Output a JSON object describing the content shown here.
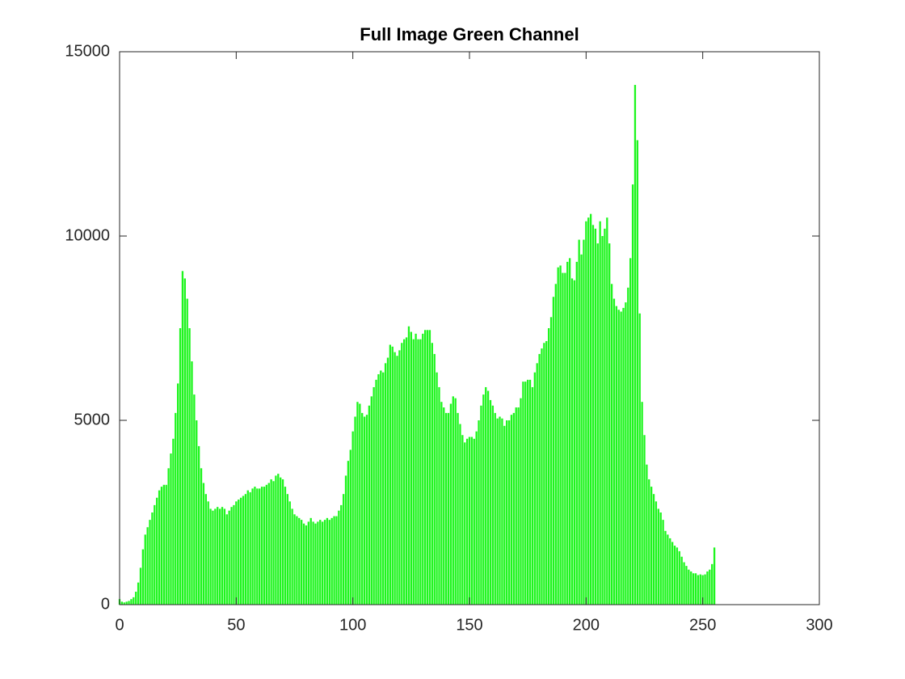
{
  "chart_data": {
    "type": "bar",
    "title": "Full Image Green Channel",
    "x": [
      0,
      1,
      2,
      3,
      4,
      5,
      6,
      7,
      8,
      9,
      10,
      11,
      12,
      13,
      14,
      15,
      16,
      17,
      18,
      19,
      20,
      21,
      22,
      23,
      24,
      25,
      26,
      27,
      28,
      29,
      30,
      31,
      32,
      33,
      34,
      35,
      36,
      37,
      38,
      39,
      40,
      41,
      42,
      43,
      44,
      45,
      46,
      47,
      48,
      49,
      50,
      51,
      52,
      53,
      54,
      55,
      56,
      57,
      58,
      59,
      60,
      61,
      62,
      63,
      64,
      65,
      66,
      67,
      68,
      69,
      70,
      71,
      72,
      73,
      74,
      75,
      76,
      77,
      78,
      79,
      80,
      81,
      82,
      83,
      84,
      85,
      86,
      87,
      88,
      89,
      90,
      91,
      92,
      93,
      94,
      95,
      96,
      97,
      98,
      99,
      100,
      101,
      102,
      103,
      104,
      105,
      106,
      107,
      108,
      109,
      110,
      111,
      112,
      113,
      114,
      115,
      116,
      117,
      118,
      119,
      120,
      121,
      122,
      123,
      124,
      125,
      126,
      127,
      128,
      129,
      130,
      131,
      132,
      133,
      134,
      135,
      136,
      137,
      138,
      139,
      140,
      141,
      142,
      143,
      144,
      145,
      146,
      147,
      148,
      149,
      150,
      151,
      152,
      153,
      154,
      155,
      156,
      157,
      158,
      159,
      160,
      161,
      162,
      163,
      164,
      165,
      166,
      167,
      168,
      169,
      170,
      171,
      172,
      173,
      174,
      175,
      176,
      177,
      178,
      179,
      180,
      181,
      182,
      183,
      184,
      185,
      186,
      187,
      188,
      189,
      190,
      191,
      192,
      193,
      194,
      195,
      196,
      197,
      198,
      199,
      200,
      201,
      202,
      203,
      204,
      205,
      206,
      207,
      208,
      209,
      210,
      211,
      212,
      213,
      214,
      215,
      216,
      217,
      218,
      219,
      220,
      221,
      222,
      223,
      224,
      225,
      226,
      227,
      228,
      229,
      230,
      231,
      232,
      233,
      234,
      235,
      236,
      237,
      238,
      239,
      240,
      241,
      242,
      243,
      244,
      245,
      246,
      247,
      248,
      249,
      250,
      251,
      252,
      253,
      254,
      255
    ],
    "values": [
      150,
      80,
      60,
      80,
      100,
      150,
      200,
      350,
      600,
      1000,
      1500,
      1900,
      2100,
      2300,
      2500,
      2700,
      2900,
      3100,
      3200,
      3250,
      3250,
      3700,
      4100,
      4500,
      5200,
      6000,
      7500,
      9050,
      8850,
      8300,
      7500,
      6600,
      5700,
      5000,
      4300,
      3700,
      3300,
      3000,
      2800,
      2600,
      2550,
      2600,
      2650,
      2600,
      2650,
      2600,
      2450,
      2550,
      2650,
      2700,
      2800,
      2850,
      2900,
      2950,
      3000,
      3100,
      3050,
      3150,
      3200,
      3150,
      3150,
      3200,
      3200,
      3250,
      3300,
      3400,
      3350,
      3500,
      3550,
      3450,
      3400,
      3200,
      3000,
      2800,
      2600,
      2450,
      2400,
      2350,
      2300,
      2200,
      2150,
      2250,
      2350,
      2250,
      2200,
      2250,
      2300,
      2250,
      2300,
      2350,
      2300,
      2350,
      2400,
      2400,
      2550,
      2700,
      3000,
      3500,
      3900,
      4200,
      4700,
      5100,
      5500,
      5450,
      5200,
      5100,
      5150,
      5400,
      5650,
      5900,
      6100,
      6250,
      6350,
      6300,
      6550,
      6700,
      7050,
      7000,
      6850,
      6750,
      6900,
      7100,
      7200,
      7250,
      7550,
      7400,
      7200,
      7350,
      7200,
      7200,
      7350,
      7450,
      7450,
      7450,
      7100,
      6800,
      6300,
      5900,
      5500,
      5350,
      5200,
      5200,
      5450,
      5650,
      5600,
      5200,
      4900,
      4600,
      4400,
      4500,
      4550,
      4550,
      4500,
      4700,
      5000,
      5400,
      5700,
      5900,
      5800,
      5550,
      5400,
      5200,
      5050,
      5100,
      5050,
      4850,
      5000,
      5000,
      5150,
      5200,
      5350,
      5350,
      5600,
      6050,
      6050,
      6100,
      6100,
      5900,
      6300,
      6550,
      6800,
      6950,
      7100,
      7150,
      7500,
      7800,
      8350,
      8700,
      9150,
      9200,
      9000,
      9000,
      9300,
      9400,
      8850,
      8800,
      9300,
      9900,
      9500,
      9900,
      10400,
      10500,
      10600,
      10300,
      10200,
      9800,
      10400,
      10000,
      10200,
      10500,
      9800,
      8700,
      8300,
      8100,
      8000,
      7950,
      8050,
      8200,
      8600,
      9400,
      11400,
      14100,
      12600,
      7900,
      5500,
      4600,
      3800,
      3400,
      3200,
      3000,
      2800,
      2600,
      2500,
      2300,
      2000,
      1900,
      1800,
      1700,
      1600,
      1550,
      1450,
      1300,
      1150,
      1050,
      950,
      900,
      850,
      850,
      800,
      820,
      800,
      820,
      900,
      950,
      1100,
      1550
    ],
    "color": "#1ef51e",
    "xlim": [
      0,
      300
    ],
    "xticks": [
      0,
      50,
      100,
      150,
      200,
      250,
      300
    ],
    "ylim": [
      0,
      15000
    ],
    "yticks": [
      0,
      5000,
      10000,
      15000
    ]
  }
}
